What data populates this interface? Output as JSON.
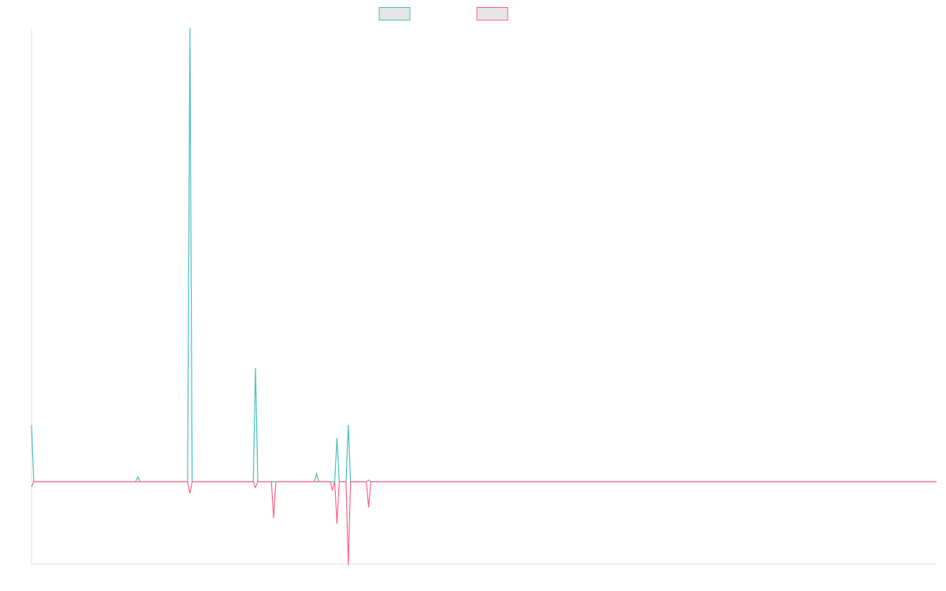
{
  "chart_data": {
    "type": "line",
    "title": "",
    "xlabel": "",
    "ylabel": "",
    "grid": false,
    "legend_position": "top-center",
    "ylim": [
      -100,
      550
    ],
    "x_count": 401,
    "series": [
      {
        "color": "#4bc0c0",
        "fill": "#e6e6e6",
        "points": [
          [
            0,
            69
          ],
          [
            1,
            0
          ],
          [
            46,
            0
          ],
          [
            47,
            6
          ],
          [
            48,
            0
          ],
          [
            69,
            0
          ],
          [
            70,
            550
          ],
          [
            71,
            0
          ],
          [
            98,
            0
          ],
          [
            99,
            138
          ],
          [
            100,
            0
          ],
          [
            125,
            0
          ],
          [
            126,
            10
          ],
          [
            127,
            0
          ],
          [
            134,
            0
          ],
          [
            135,
            53
          ],
          [
            136,
            0
          ],
          [
            139,
            0
          ],
          [
            140,
            69
          ],
          [
            141,
            0
          ],
          [
            148,
            0
          ],
          [
            149,
            2
          ],
          [
            150,
            0
          ],
          [
            400,
            0
          ]
        ]
      },
      {
        "color": "#ff6384",
        "fill": "#e6e6e6",
        "points": [
          [
            0,
            -6
          ],
          [
            1,
            0
          ],
          [
            69,
            0
          ],
          [
            70,
            -14
          ],
          [
            71,
            0
          ],
          [
            98,
            0
          ],
          [
            99,
            -7
          ],
          [
            100,
            0
          ],
          [
            106,
            0
          ],
          [
            107,
            -44
          ],
          [
            108,
            0
          ],
          [
            132,
            0
          ],
          [
            133,
            -10
          ],
          [
            134,
            0
          ],
          [
            135,
            -51
          ],
          [
            136,
            0
          ],
          [
            139,
            0
          ],
          [
            140,
            -101
          ],
          [
            141,
            0
          ],
          [
            148,
            0
          ],
          [
            149,
            -31
          ],
          [
            150,
            0
          ],
          [
            400,
            0
          ]
        ]
      }
    ]
  }
}
